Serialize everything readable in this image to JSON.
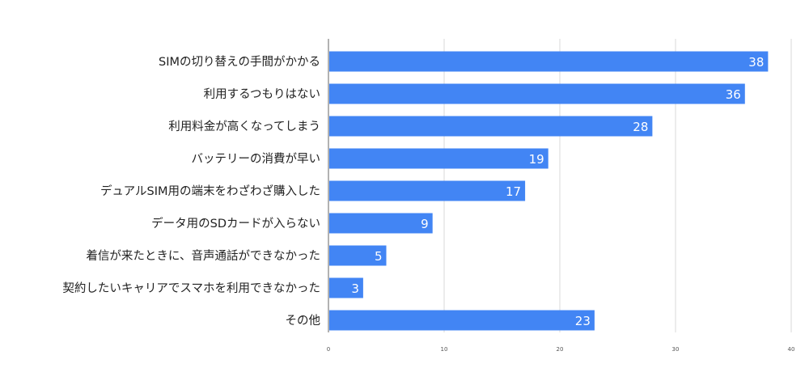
{
  "chart_data": {
    "type": "bar",
    "orientation": "horizontal",
    "categories": [
      "SIMの切り替えの手間がかかる",
      "利用するつもりはない",
      "利用料金が高くなってしまう",
      "バッテリーの消費が早い",
      "デュアルSIM用の端末をわざわざ購入した",
      "データ用のSDカードが入らない",
      "着信が来たときに、音声通話ができなかった",
      "契約したいキャリアでスマホを利用できなかった",
      "その他"
    ],
    "values": [
      38,
      36,
      28,
      19,
      17,
      9,
      5,
      3,
      23
    ],
    "xlim": [
      0,
      40
    ],
    "xticks": [
      "0",
      "10",
      "20",
      "30",
      "40"
    ],
    "grid": true,
    "data_labels": true,
    "bar_color": "#4285f4",
    "title": "",
    "xlabel": "",
    "ylabel": ""
  }
}
